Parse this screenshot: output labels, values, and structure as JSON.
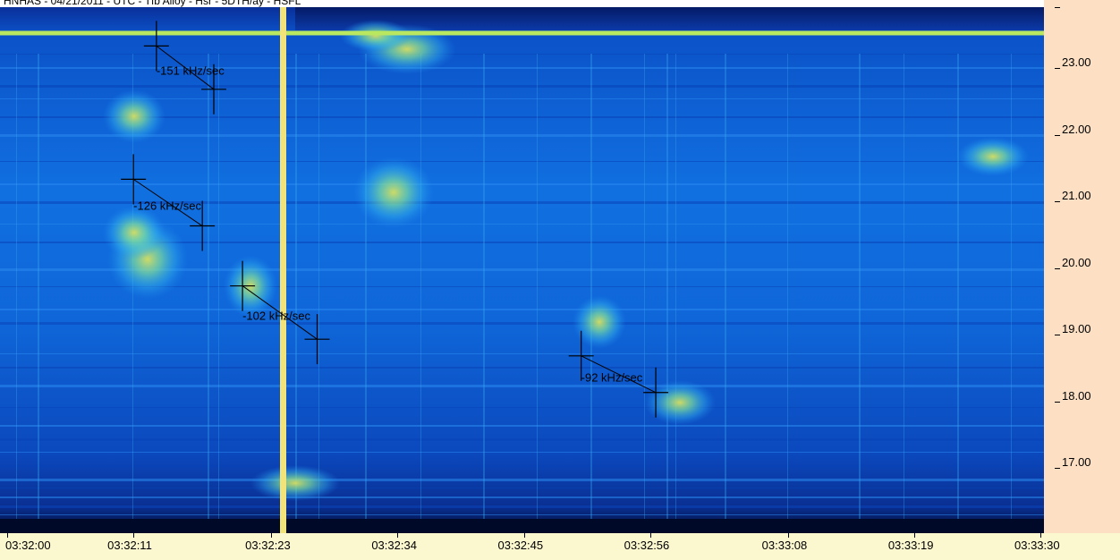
{
  "header": {
    "text": "HNHAS - 04/21/2011 - UTC - Tfb Alloy - Hsr - 5DTH/ay - HSFL"
  },
  "chart_data": {
    "type": "heatmap",
    "title": "",
    "xlabel": "",
    "ylabel": "",
    "x_ticks": [
      "03:32:00",
      "03:32:11",
      "03:32:23",
      "03:32:34",
      "03:32:45",
      "03:32:56",
      "03:33:08",
      "03:33:19",
      "03:33:30"
    ],
    "x_range": [
      "03:32:00",
      "03:33:30"
    ],
    "y_ticks": [
      "17.00",
      "18.00",
      "19.00",
      "20.00",
      "21.00",
      "22.00",
      "23.00"
    ],
    "y_range": [
      16.0,
      23.85
    ],
    "colormap": [
      "#002b8f",
      "#0d55d6",
      "#1f8ff0",
      "#3fc8e8",
      "#a8e27a",
      "#f3d24a"
    ],
    "annotations": [
      {
        "label": "-151 kHz/sec",
        "start": {
          "t": "03:32:13",
          "f": 23.25
        },
        "end": {
          "t": "03:32:18",
          "f": 22.6
        }
      },
      {
        "label": "-126 kHz/sec",
        "start": {
          "t": "03:32:11",
          "f": 21.25
        },
        "end": {
          "t": "03:32:17",
          "f": 20.55
        }
      },
      {
        "label": "-102 kHz/sec",
        "start": {
          "t": "03:32:20.5",
          "f": 19.65
        },
        "end": {
          "t": "03:32:27",
          "f": 18.85
        }
      },
      {
        "label": "-92 kHz/sec",
        "start": {
          "t": "03:32:50",
          "f": 18.6
        },
        "end": {
          "t": "03:32:56.5",
          "f": 18.05
        }
      }
    ],
    "features": {
      "carrier_f": 23.45,
      "vertical_marker_t": "03:32:24"
    }
  }
}
